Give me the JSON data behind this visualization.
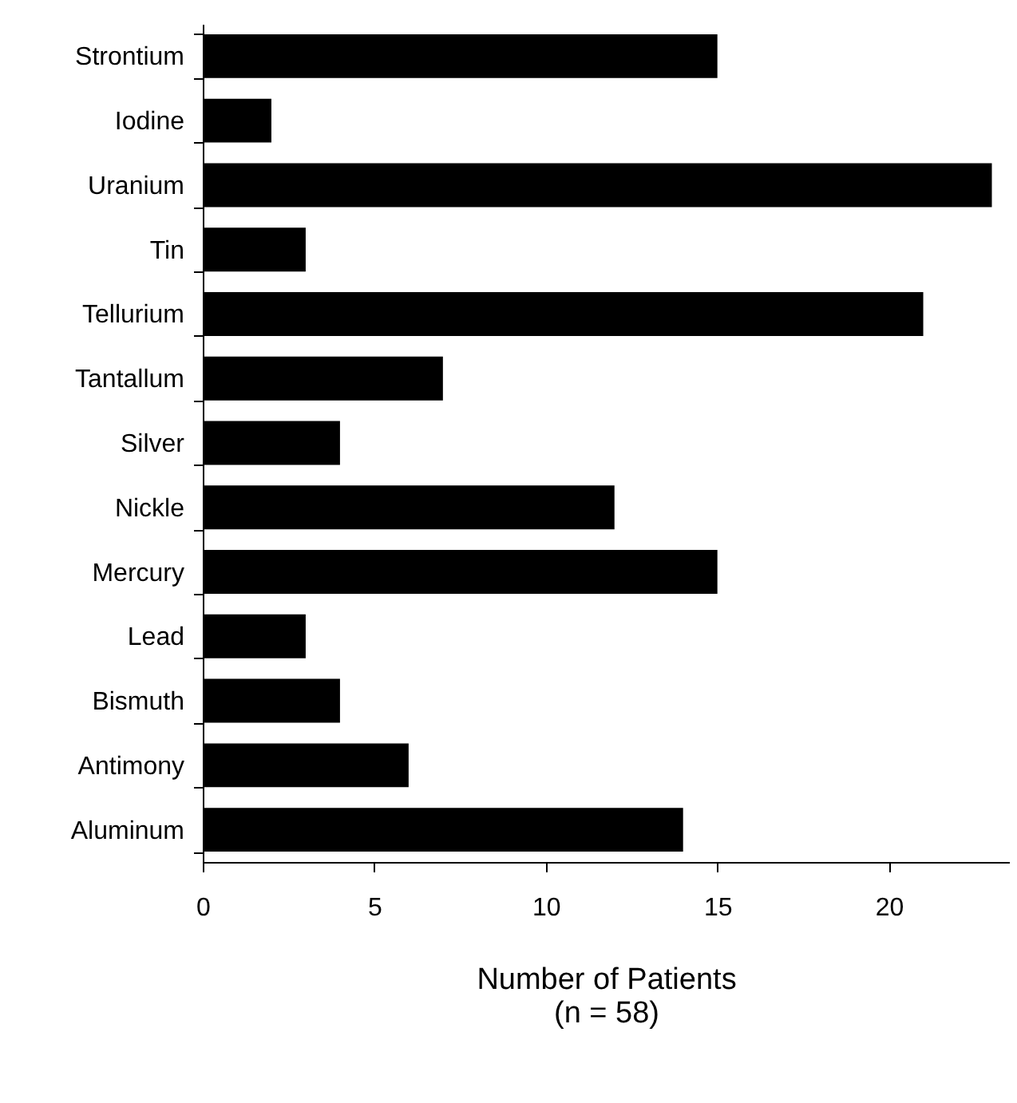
{
  "chart_data": {
    "type": "bar",
    "orientation": "horizontal",
    "xlabel": "Number of Patients\n(n = 58)",
    "categories": [
      "Strontium",
      "Iodine",
      "Uranium",
      "Tin",
      "Tellurium",
      "Tantallum",
      "Silver",
      "Nickle",
      "Mercury",
      "Lead",
      "Bismuth",
      "Antimony",
      "Aluminum"
    ],
    "values": [
      15,
      2,
      23,
      3,
      21,
      7,
      4,
      12,
      15,
      3,
      4,
      6,
      14
    ],
    "color": "#000000",
    "xlim": [
      0,
      23.5
    ],
    "xticks": [
      0,
      5,
      10,
      15,
      20
    ],
    "grid": false
  }
}
